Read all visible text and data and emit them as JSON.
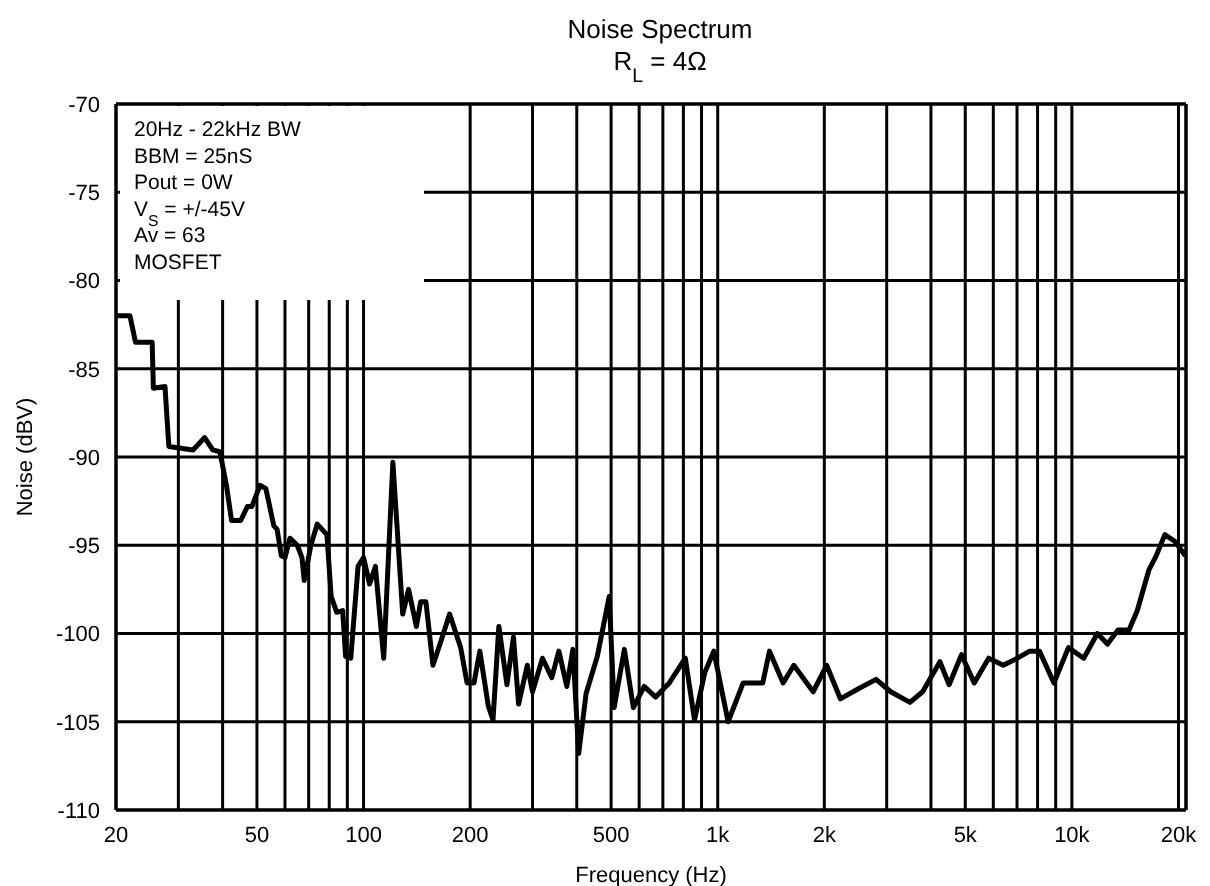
{
  "chart_data": {
    "type": "line",
    "title": "Noise Spectrum",
    "subtitle": "R$_{L}$ = 4Ω",
    "xlabel": "Frequency (Hz)",
    "ylabel": "Noise  (dBV)",
    "annotations": [
      "20Hz - 22kHz BW",
      "BBM = 25nS",
      "Pout = 0W",
      "V$_{S}$ = +/-45V",
      "Av = 63",
      "MOSFET"
    ],
    "log": "x",
    "grid": true,
    "xlim": [
      20,
      21000
    ],
    "ylim": [
      -110,
      -70
    ],
    "xticks": [
      20,
      {
        "value": 30,
        "label": null
      },
      {
        "value": 40,
        "label": null
      },
      50,
      {
        "value": 60,
        "label": null
      },
      {
        "value": 70,
        "label": null
      },
      {
        "value": 80,
        "label": null
      },
      {
        "value": 90,
        "label": null
      },
      100,
      200,
      {
        "value": 300,
        "label": null
      },
      {
        "value": 400,
        "label": null
      },
      500,
      {
        "value": 600,
        "label": null
      },
      {
        "value": 700,
        "label": null
      },
      {
        "value": 800,
        "label": null
      },
      {
        "value": 900,
        "label": null
      },
      {
        "value": 1000,
        "label": "1k"
      },
      {
        "value": 2000,
        "label": "2k"
      },
      {
        "value": 3000,
        "label": null
      },
      {
        "value": 4000,
        "label": null
      },
      {
        "value": 5000,
        "label": "5k"
      },
      {
        "value": 6000,
        "label": null
      },
      {
        "value": 7000,
        "label": null
      },
      {
        "value": 8000,
        "label": null
      },
      {
        "value": 9000,
        "label": null
      },
      {
        "value": 10000,
        "label": "10k"
      },
      {
        "value": 20000,
        "label": "20k"
      }
    ],
    "yticks": [
      -110,
      -105,
      -100,
      -95,
      -90,
      -85,
      -80,
      -75,
      -70
    ],
    "x": [
      20,
      21.9,
      22.7,
      25.3,
      25.5,
      27.5,
      28.2,
      33,
      35.6,
      37.5,
      39.3,
      41,
      42.4,
      45,
      47,
      48.4,
      51,
      53,
      55.8,
      57,
      58.6,
      60,
      62,
      65,
      67,
      68,
      71,
      74,
      78.8,
      81,
      84,
      87.3,
      89,
      92,
      96.5,
      100,
      104,
      108,
      114,
      121,
      129,
      134,
      141,
      145,
      150,
      157,
      165,
      175,
      188,
      196,
      205,
      213,
      225,
      232,
      241,
      254,
      265,
      274,
      290,
      300,
      320,
      340,
      356,
      375,
      390,
      405,
      425,
      457,
      494,
      510,
      545,
      578,
      620,
      668,
      730,
      810,
      860,
      920,
      975,
      1070,
      1180,
      1340,
      1400,
      1530,
      1640,
      1860,
      2030,
      2220,
      2510,
      2800,
      3080,
      3490,
      3790,
      4240,
      4500,
      4880,
      5300,
      5820,
      6400,
      7020,
      7600,
      8100,
      8900,
      9780,
      10800,
      11800,
      12600,
      13500,
      14500,
      15300,
      16500,
      17300,
      18300,
      19600,
      20900
    ],
    "series": [
      {
        "color": "#000000",
        "values": [
          -82,
          -82,
          -83.5,
          -83.5,
          -86.1,
          -86,
          -89.4,
          -89.6,
          -88.9,
          -89.6,
          -89.7,
          -91.6,
          -93.6,
          -93.6,
          -92.8,
          -92.8,
          -91.6,
          -91.8,
          -93.9,
          -94.1,
          -95.6,
          -95.7,
          -94.6,
          -95,
          -95.7,
          -97,
          -95,
          -93.8,
          -94.4,
          -97.9,
          -98.8,
          -98.7,
          -101.3,
          -101.4,
          -96.2,
          -95.7,
          -97.2,
          -96.2,
          -101.4,
          -90.3,
          -98.9,
          -97.5,
          -99.6,
          -98.2,
          -98.2,
          -101.8,
          -100.5,
          -98.9,
          -100.8,
          -102.8,
          -102.8,
          -101,
          -104.1,
          -104.9,
          -99.6,
          -102.9,
          -100.2,
          -104,
          -101.8,
          -103.3,
          -101.4,
          -102.5,
          -101,
          -103,
          -100.9,
          -106.8,
          -103.4,
          -101.3,
          -97.9,
          -104.2,
          -100.9,
          -104.2,
          -103,
          -103.6,
          -102.8,
          -101.4,
          -104.9,
          -102.2,
          -101,
          -105,
          -102.8,
          -102.8,
          -101,
          -102.8,
          -101.8,
          -103.3,
          -101.8,
          -103.7,
          -103.1,
          -102.6,
          -103.3,
          -103.9,
          -103.3,
          -101.6,
          -102.9,
          -101.2,
          -102.8,
          -101.4,
          -101.8,
          -101.4,
          -101,
          -101,
          -102.8,
          -100.8,
          -101.4,
          -100,
          -100.6,
          -99.8,
          -99.8,
          -98.7,
          -96.4,
          -95.6,
          -94.4,
          -94.8,
          -95.6
        ]
      }
    ]
  }
}
